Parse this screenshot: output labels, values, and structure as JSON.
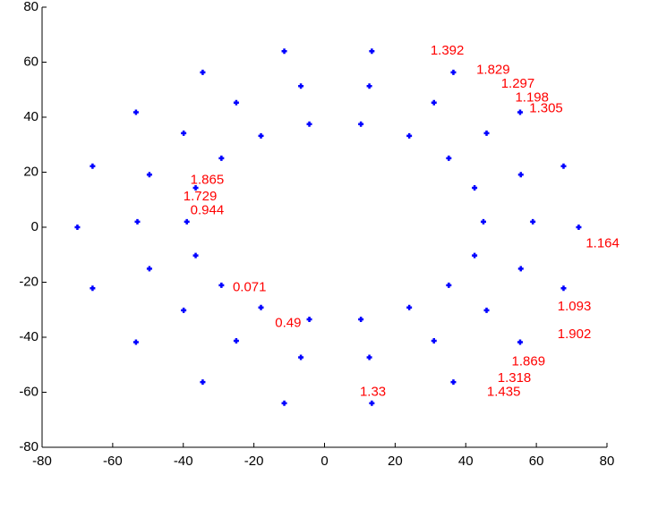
{
  "chart_data": {
    "type": "scatter",
    "color": "#0000ff",
    "label_color": "#ff0000",
    "xlim": [
      -80,
      80
    ],
    "ylim": [
      -80,
      80
    ],
    "xticks": [
      -80,
      -60,
      -40,
      -20,
      0,
      20,
      40,
      60,
      80
    ],
    "yticks": [
      -80,
      -60,
      -40,
      -20,
      0,
      20,
      40,
      60,
      80
    ],
    "x": [
      45,
      42.5,
      35.2,
      24,
      10.3,
      -4.3,
      -18,
      -29.2,
      -36.5,
      -39,
      -36.5,
      -29.2,
      -18,
      -4.3,
      10.3,
      24,
      35.2,
      42.5,
      59,
      55.6,
      45.9,
      31,
      12.7,
      -6.7,
      -25,
      -39.9,
      -49.6,
      -53,
      -49.6,
      -39.9,
      -25,
      -6.7,
      12.7,
      31,
      45.9,
      55.6,
      72,
      67.7,
      55.4,
      36.5,
      13.4,
      -11.4,
      -34.5,
      -53.4,
      -65.7,
      -70,
      -65.7,
      -53.4,
      -34.5,
      -11.4,
      13.4,
      36.5,
      55.4,
      67.7
    ],
    "y": [
      2,
      14.3,
      25.1,
      33.2,
      37.5,
      37.5,
      33.2,
      25.1,
      14.3,
      2,
      -10.3,
      -21.1,
      -29.2,
      -33.5,
      -33.5,
      -29.2,
      -21.1,
      -10.3,
      2,
      19.1,
      34.2,
      45.3,
      51.3,
      51.3,
      45.3,
      34.2,
      19.1,
      2,
      -15.1,
      -30.2,
      -41.3,
      -47.3,
      -47.3,
      -41.3,
      -30.2,
      -15.1,
      0,
      22.2,
      41.8,
      56.3,
      64,
      64,
      56.3,
      41.8,
      22.2,
      0,
      -22.2,
      -41.8,
      -56.3,
      -64,
      -64,
      -56.3,
      -41.8,
      -22.2
    ],
    "annotations": [
      {
        "text": "0.49",
        "x": -14,
        "y": -35
      },
      {
        "text": "1.093",
        "x": 66,
        "y": -29
      },
      {
        "text": "1.902",
        "x": 66,
        "y": -39
      },
      {
        "text": "1.869",
        "x": 53,
        "y": -49
      },
      {
        "text": "1.318",
        "x": 49,
        "y": -55
      },
      {
        "text": "1.435",
        "x": 46,
        "y": -60
      },
      {
        "text": "1.198",
        "x": 54,
        "y": 47
      },
      {
        "text": "1.305",
        "x": 58,
        "y": 43
      },
      {
        "text": "1.297",
        "x": 50,
        "y": 52
      },
      {
        "text": "1.829",
        "x": 43,
        "y": 57
      },
      {
        "text": "1.392",
        "x": 30,
        "y": 64
      },
      {
        "text": "0.071",
        "x": -26,
        "y": -22
      },
      {
        "text": "1.865",
        "x": -38,
        "y": 17
      },
      {
        "text": "1.729",
        "x": -40,
        "y": 11
      },
      {
        "text": "0.944",
        "x": -38,
        "y": 6
      },
      {
        "text": "1.164",
        "x": 74,
        "y": -6
      },
      {
        "text": "1.33",
        "x": 10,
        "y": -60
      }
    ]
  }
}
